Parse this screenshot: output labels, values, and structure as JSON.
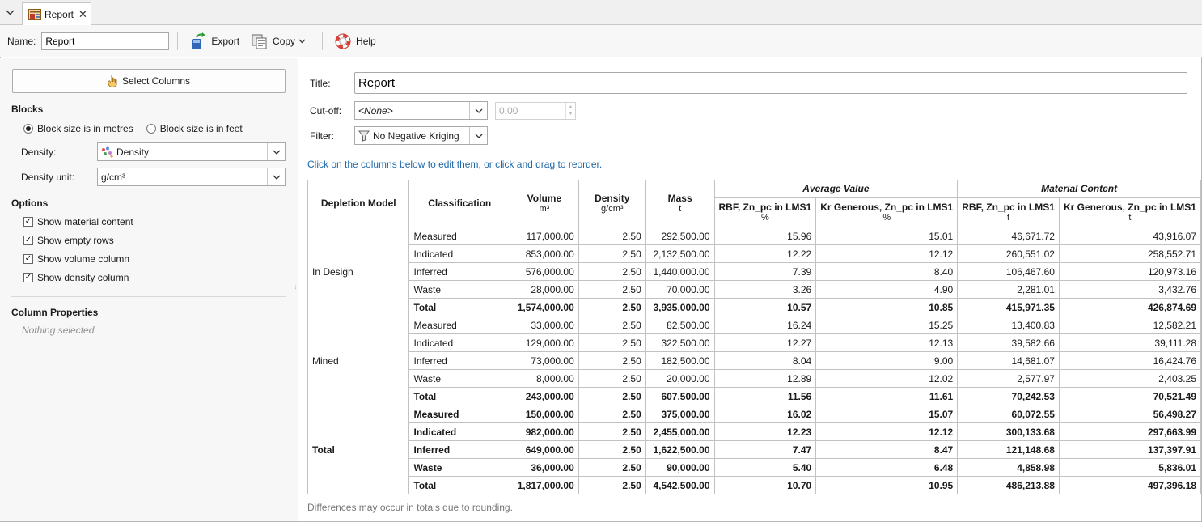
{
  "tab": {
    "label": "Report",
    "icon": "report-icon",
    "close": "✕",
    "menu": "chevron-down-icon"
  },
  "toolbar": {
    "name_label": "Name:",
    "name_value": "Report",
    "export_label": "Export",
    "copy_label": "Copy",
    "help_label": "Help"
  },
  "left": {
    "select_columns_label": "Select Columns",
    "blocks_heading": "Blocks",
    "radio_metres": "Block size is in metres",
    "radio_feet": "Block size is in feet",
    "radio_selected": "metres",
    "density_label": "Density:",
    "density_value": "Density",
    "density_unit_label": "Density unit:",
    "density_unit_value": "g/cm³",
    "options_heading": "Options",
    "options": [
      {
        "label": "Show material content",
        "checked": true
      },
      {
        "label": "Show empty rows",
        "checked": true
      },
      {
        "label": "Show volume column",
        "checked": true
      },
      {
        "label": "Show density column",
        "checked": true
      }
    ],
    "column_properties_heading": "Column Properties",
    "nothing_selected": "Nothing selected"
  },
  "right": {
    "title_label": "Title:",
    "title_value": "Report",
    "cutoff_label": "Cut-off:",
    "cutoff_value": "<None>",
    "cutoff_number": "0.00",
    "filter_label": "Filter:",
    "filter_value": "No Negative Kriging",
    "hint": "Click on the columns below to edit them, or click and drag to reorder.",
    "footnote": "Differences may occur in totals due to rounding."
  },
  "table": {
    "group_headers": {
      "average_value": "Average Value",
      "material_content": "Material Content"
    },
    "columns": [
      {
        "label": "Depletion Model",
        "unit": ""
      },
      {
        "label": "Classification",
        "unit": ""
      },
      {
        "label": "Volume",
        "unit": "m³"
      },
      {
        "label": "Density",
        "unit": "g/cm³"
      },
      {
        "label": "Mass",
        "unit": "t"
      },
      {
        "label": "RBF, Zn_pc in LMS1",
        "unit": "%"
      },
      {
        "label": "Kr Generous, Zn_pc in LMS1",
        "unit": "%"
      },
      {
        "label": "RBF, Zn_pc in LMS1",
        "unit": "t"
      },
      {
        "label": "Kr Generous, Zn_pc in LMS1",
        "unit": "t"
      }
    ],
    "groups": [
      {
        "name": "In Design",
        "rows": [
          [
            "Measured",
            "117,000.00",
            "2.50",
            "292,500.00",
            "15.96",
            "15.01",
            "46,671.72",
            "43,916.07"
          ],
          [
            "Indicated",
            "853,000.00",
            "2.50",
            "2,132,500.00",
            "12.22",
            "12.12",
            "260,551.02",
            "258,552.71"
          ],
          [
            "Inferred",
            "576,000.00",
            "2.50",
            "1,440,000.00",
            "7.39",
            "8.40",
            "106,467.60",
            "120,973.16"
          ],
          [
            "Waste",
            "28,000.00",
            "2.50",
            "70,000.00",
            "3.26",
            "4.90",
            "2,281.01",
            "3,432.76"
          ],
          [
            "Total",
            "1,574,000.00",
            "2.50",
            "3,935,000.00",
            "10.57",
            "10.85",
            "415,971.35",
            "426,874.69"
          ]
        ]
      },
      {
        "name": "Mined",
        "rows": [
          [
            "Measured",
            "33,000.00",
            "2.50",
            "82,500.00",
            "16.24",
            "15.25",
            "13,400.83",
            "12,582.21"
          ],
          [
            "Indicated",
            "129,000.00",
            "2.50",
            "322,500.00",
            "12.27",
            "12.13",
            "39,582.66",
            "39,111.28"
          ],
          [
            "Inferred",
            "73,000.00",
            "2.50",
            "182,500.00",
            "8.04",
            "9.00",
            "14,681.07",
            "16,424.76"
          ],
          [
            "Waste",
            "8,000.00",
            "2.50",
            "20,000.00",
            "12.89",
            "12.02",
            "2,577.97",
            "2,403.25"
          ],
          [
            "Total",
            "243,000.00",
            "2.50",
            "607,500.00",
            "11.56",
            "11.61",
            "70,242.53",
            "70,521.49"
          ]
        ]
      },
      {
        "name": "Total",
        "rows": [
          [
            "Measured",
            "150,000.00",
            "2.50",
            "375,000.00",
            "16.02",
            "15.07",
            "60,072.55",
            "56,498.27"
          ],
          [
            "Indicated",
            "982,000.00",
            "2.50",
            "2,455,000.00",
            "12.23",
            "12.12",
            "300,133.68",
            "297,663.99"
          ],
          [
            "Inferred",
            "649,000.00",
            "2.50",
            "1,622,500.00",
            "7.47",
            "8.47",
            "121,148.68",
            "137,397.91"
          ],
          [
            "Waste",
            "36,000.00",
            "2.50",
            "90,000.00",
            "5.40",
            "6.48",
            "4,858.98",
            "5,836.01"
          ],
          [
            "Total",
            "1,817,000.00",
            "2.50",
            "4,542,500.00",
            "10.70",
            "10.95",
            "486,213.88",
            "497,396.18"
          ]
        ]
      }
    ]
  }
}
